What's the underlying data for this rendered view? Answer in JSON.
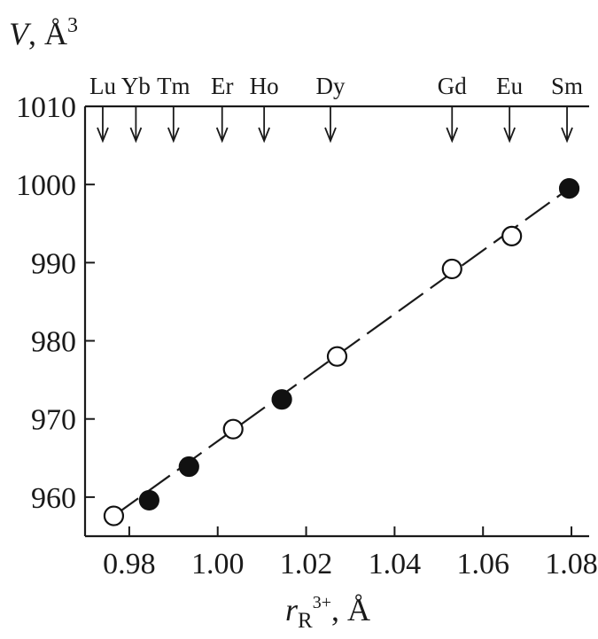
{
  "chart_data": {
    "type": "scatter",
    "title": "",
    "ylabel": {
      "var": "V",
      "sep": ", ",
      "unit": "Å",
      "exp": "3"
    },
    "xlabel": {
      "var": "r",
      "sub": "R",
      "sup": "3+",
      "sep": ", ",
      "unit": "Å"
    },
    "xlim": [
      0.97,
      1.084
    ],
    "ylim": [
      955,
      1010
    ],
    "x_ticks": [
      "0.98",
      "1.00",
      "1.02",
      "1.04",
      "1.06",
      "1.08"
    ],
    "y_ticks": [
      "960",
      "970",
      "980",
      "990",
      "1000",
      "1010"
    ],
    "elements": [
      {
        "label": "Lu",
        "x": 0.974
      },
      {
        "label": "Yb",
        "x": 0.9815
      },
      {
        "label": "Tm",
        "x": 0.99
      },
      {
        "label": "Er",
        "x": 1.001
      },
      {
        "label": "Ho",
        "x": 1.0105
      },
      {
        "label": "Dy",
        "x": 1.0255
      },
      {
        "label": "Gd",
        "x": 1.053
      },
      {
        "label": "Eu",
        "x": 1.066
      },
      {
        "label": "Sm",
        "x": 1.079
      }
    ],
    "series": [
      {
        "marker": "filled",
        "color": "#111111",
        "points": [
          {
            "x": 0.9845,
            "y": 959.6
          },
          {
            "x": 0.9935,
            "y": 963.9
          },
          {
            "x": 1.0145,
            "y": 972.5
          },
          {
            "x": 1.0795,
            "y": 999.5
          }
        ]
      },
      {
        "marker": "open",
        "color": "#111111",
        "points": [
          {
            "x": 0.9765,
            "y": 957.6
          },
          {
            "x": 1.0035,
            "y": 968.7
          },
          {
            "x": 1.027,
            "y": 978.0
          },
          {
            "x": 1.053,
            "y": 989.2
          },
          {
            "x": 1.0665,
            "y": 993.4
          }
        ]
      }
    ],
    "fit_line": {
      "style": "dashed",
      "from": {
        "x": 0.9765,
        "y": 957.6
      },
      "to": {
        "x": 1.0795,
        "y": 999.5
      }
    }
  }
}
